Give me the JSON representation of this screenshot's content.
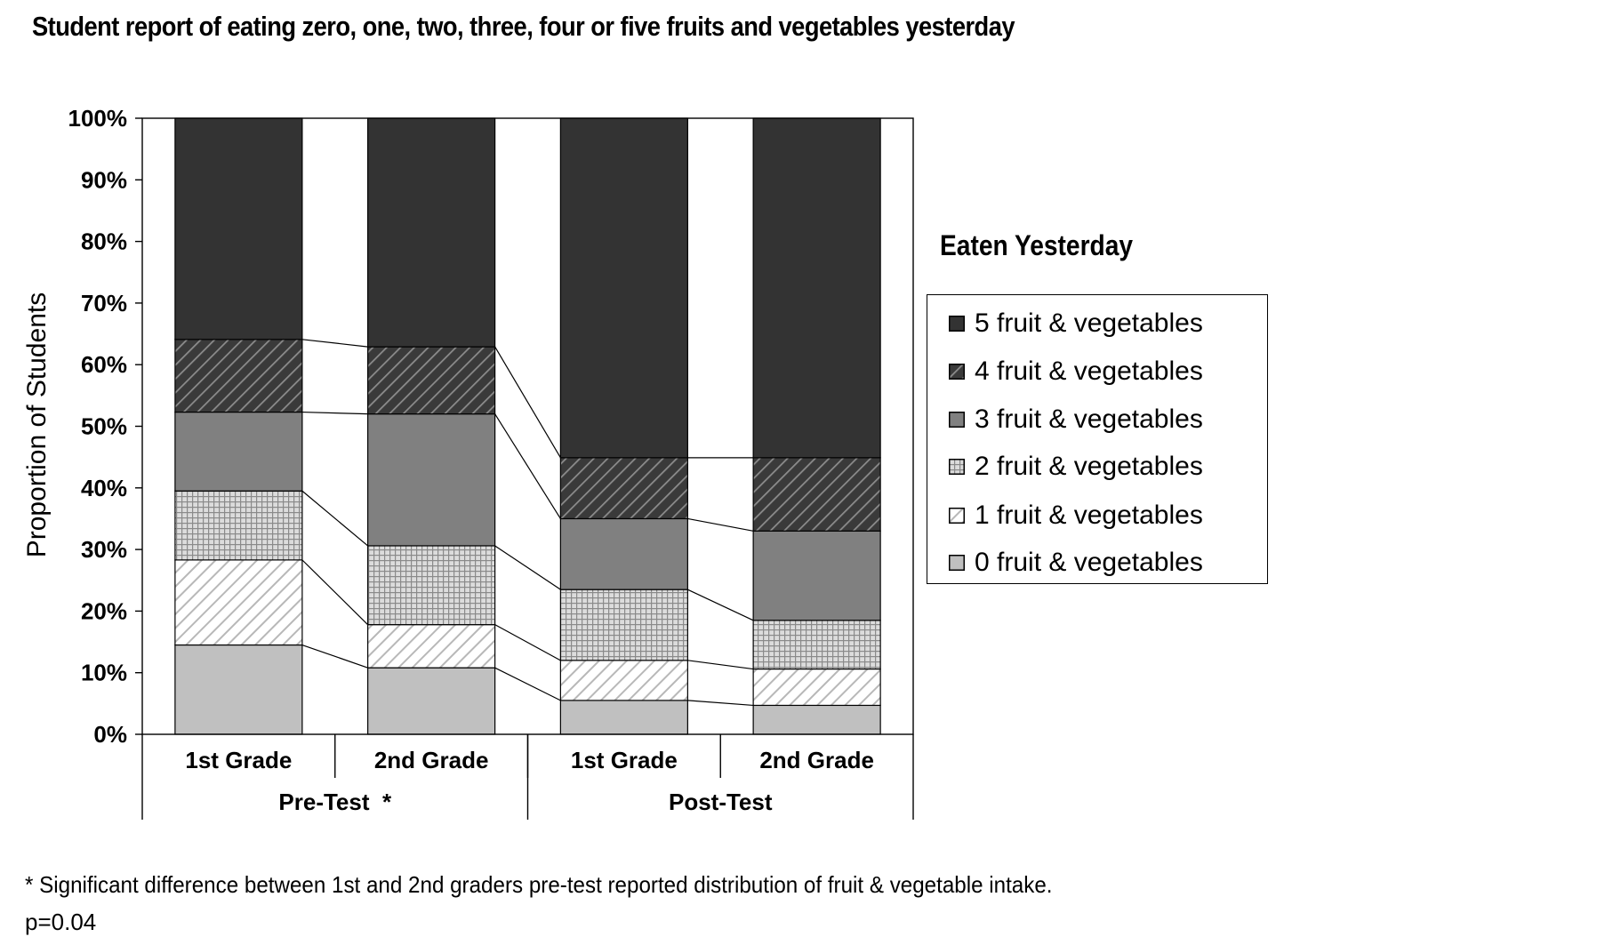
{
  "chart_data": {
    "type": "bar",
    "stacked": true,
    "title": "Student report of eating zero, one, two, three, four or five fruits and vegetables yesterday",
    "ylabel": "Proportion of Students",
    "ylim": [
      0,
      100
    ],
    "y_tick_labels": [
      "0%",
      "10%",
      "20%",
      "30%",
      "40%",
      "50%",
      "60%",
      "70%",
      "80%",
      "90%",
      "100%"
    ],
    "categories": [
      "1st Grade",
      "2nd Grade",
      "1st Grade",
      "2nd Grade"
    ],
    "groups": [
      {
        "label": "Pre-Test  *",
        "span": [
          0,
          1
        ]
      },
      {
        "label": "Post-Test",
        "span": [
          2,
          3
        ]
      }
    ],
    "legend_title": "Eaten Yesterday",
    "legend_position": "right",
    "series": [
      {
        "name": "0 fruit & vegetables",
        "values": [
          14.5,
          10.8,
          5.5,
          4.7
        ],
        "fill": "#c0c0c0",
        "pattern": "solid"
      },
      {
        "name": "1 fruit & vegetables",
        "values": [
          13.8,
          7.0,
          6.5,
          5.9
        ],
        "fill": "#ffffff",
        "pattern": "light-diagonal"
      },
      {
        "name": "2 fruit & vegetables",
        "values": [
          11.2,
          12.8,
          11.5,
          7.9
        ],
        "fill": "#c8c8c8",
        "pattern": "grid"
      },
      {
        "name": "3 fruit & vegetables",
        "values": [
          12.8,
          21.4,
          11.5,
          14.5
        ],
        "fill": "#808080",
        "pattern": "solid"
      },
      {
        "name": "4 fruit & vegetables",
        "values": [
          11.8,
          10.9,
          9.9,
          11.9
        ],
        "fill": "#4a4a4a",
        "pattern": "dark-diagonal"
      },
      {
        "name": "5 fruit & vegetables",
        "values": [
          35.9,
          37.1,
          55.1,
          55.1
        ],
        "fill": "#333333",
        "pattern": "solid"
      }
    ],
    "grid": false,
    "series_lines": true
  },
  "footnote": "* Significant difference between 1st and 2nd graders pre-test reported distribution of fruit & vegetable intake.",
  "p_value": "p=0.04"
}
